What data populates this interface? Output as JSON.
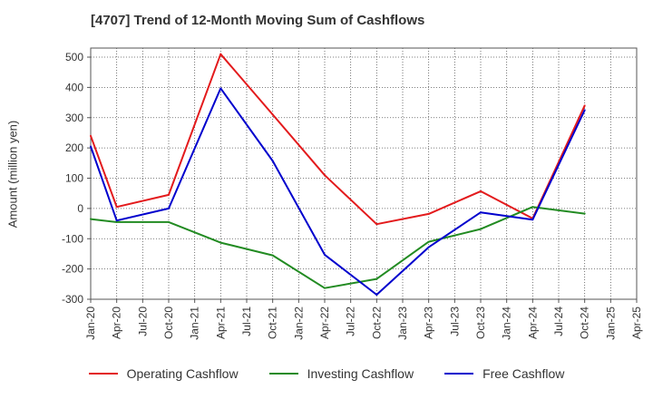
{
  "chart_data": {
    "type": "line",
    "title": "[4707]  Trend of 12-Month Moving Sum of Cashflows",
    "ylabel": "Amount (million yen)",
    "xlabel": "",
    "x_ticks": [
      "Jan-20",
      "Apr-20",
      "Jul-20",
      "Oct-20",
      "Jan-21",
      "Apr-21",
      "Jul-21",
      "Oct-21",
      "Jan-22",
      "Apr-22",
      "Jul-22",
      "Oct-22",
      "Jan-23",
      "Apr-23",
      "Jul-23",
      "Oct-23",
      "Jan-24",
      "Apr-24",
      "Jul-24",
      "Oct-24",
      "Jan-25",
      "Apr-25"
    ],
    "y_ticks": [
      500,
      400,
      300,
      200,
      100,
      0,
      -100,
      -200,
      -300
    ],
    "ylim": [
      -300,
      530
    ],
    "grid": true,
    "legend_position": "bottom",
    "series": [
      {
        "name": "Operating Cashflow",
        "color": "#e31a1c",
        "x": [
          "Jan-20",
          "Apr-20",
          "Oct-20",
          "Apr-21",
          "Oct-21",
          "Apr-22",
          "Oct-22",
          "Apr-23",
          "Oct-23",
          "Apr-24",
          "Oct-24"
        ],
        "values": [
          240,
          5,
          45,
          510,
          310,
          110,
          -52,
          -18,
          57,
          -33,
          340
        ]
      },
      {
        "name": "Investing Cashflow",
        "color": "#228b22",
        "x": [
          "Jan-20",
          "Apr-20",
          "Oct-20",
          "Apr-21",
          "Oct-21",
          "Apr-22",
          "Oct-22",
          "Apr-23",
          "Oct-23",
          "Apr-24",
          "Oct-24"
        ],
        "values": [
          -35,
          -45,
          -45,
          -113,
          -155,
          -263,
          -233,
          -110,
          -68,
          5,
          -17
        ]
      },
      {
        "name": "Free Cashflow",
        "color": "#0000cd",
        "x": [
          "Jan-20",
          "Apr-20",
          "Oct-20",
          "Apr-21",
          "Oct-21",
          "Apr-22",
          "Oct-22",
          "Apr-23",
          "Oct-23",
          "Apr-24",
          "Oct-24"
        ],
        "values": [
          205,
          -40,
          0,
          397,
          157,
          -153,
          -285,
          -128,
          -13,
          -37,
          325
        ]
      }
    ]
  }
}
